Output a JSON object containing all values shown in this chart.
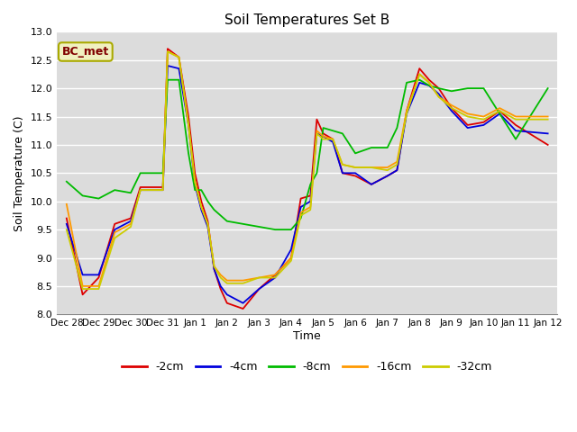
{
  "title": "Soil Temperatures Set B",
  "xlabel": "Time",
  "ylabel": "Soil Temperature (C)",
  "ylim": [
    8.0,
    13.0
  ],
  "plot_bg_color": "#dcdcdc",
  "fig_bg_color": "#ffffff",
  "label_box": "BC_met",
  "tick_labels": [
    "Dec 28",
    "Dec 29",
    "Dec 30",
    "Dec 31",
    "Jan 1",
    "Jan 2",
    "Jan 3",
    "Jan 4",
    "Jan 5",
    "Jan 6",
    "Jan 7",
    "Jan 8",
    "Jan 9",
    "Jan 10",
    "Jan 11",
    "Jan 12"
  ],
  "series": {
    "-2cm": {
      "color": "#dd0000",
      "x": [
        0,
        0.5,
        1.0,
        1.5,
        2.0,
        2.3,
        2.6,
        3.0,
        3.15,
        3.5,
        3.8,
        4.0,
        4.2,
        4.4,
        4.6,
        4.8,
        5.0,
        5.5,
        6.0,
        6.5,
        7.0,
        7.3,
        7.6,
        7.8,
        8.0,
        8.3,
        8.6,
        9.0,
        9.5,
        10.0,
        10.3,
        10.6,
        11.0,
        11.3,
        11.6,
        12.0,
        12.5,
        13.0,
        13.5,
        14.0,
        15.0
      ],
      "y": [
        9.7,
        8.35,
        8.65,
        9.6,
        9.7,
        10.25,
        10.25,
        10.25,
        12.7,
        12.55,
        11.5,
        10.5,
        10.0,
        9.65,
        8.8,
        8.45,
        8.2,
        8.1,
        8.45,
        8.7,
        9.0,
        10.05,
        10.1,
        11.45,
        11.2,
        11.1,
        10.5,
        10.45,
        10.3,
        10.45,
        10.55,
        11.6,
        12.35,
        12.15,
        12.0,
        11.65,
        11.35,
        11.4,
        11.6,
        11.35,
        11.0
      ]
    },
    "-4cm": {
      "color": "#0000dd",
      "x": [
        0,
        0.5,
        1.0,
        1.5,
        2.0,
        2.3,
        2.6,
        3.0,
        3.15,
        3.5,
        3.8,
        4.0,
        4.2,
        4.4,
        4.6,
        4.8,
        5.0,
        5.5,
        6.0,
        6.5,
        7.0,
        7.3,
        7.6,
        7.8,
        8.0,
        8.3,
        8.6,
        9.0,
        9.5,
        10.0,
        10.3,
        10.6,
        11.0,
        11.3,
        11.6,
        12.0,
        12.5,
        13.0,
        13.5,
        14.0,
        15.0
      ],
      "y": [
        9.6,
        8.7,
        8.7,
        9.5,
        9.65,
        10.2,
        10.2,
        10.2,
        12.4,
        12.35,
        11.35,
        10.3,
        9.85,
        9.55,
        8.8,
        8.5,
        8.35,
        8.2,
        8.45,
        8.65,
        9.15,
        9.9,
        10.0,
        11.2,
        11.15,
        11.05,
        10.5,
        10.5,
        10.3,
        10.45,
        10.55,
        11.55,
        12.1,
        12.05,
        11.9,
        11.6,
        11.3,
        11.35,
        11.55,
        11.25,
        11.2
      ]
    },
    "-8cm": {
      "color": "#00bb00",
      "x": [
        0,
        0.5,
        1.0,
        1.5,
        2.0,
        2.3,
        2.6,
        3.0,
        3.15,
        3.5,
        3.8,
        4.0,
        4.2,
        4.4,
        4.6,
        4.8,
        5.0,
        5.5,
        6.0,
        6.5,
        7.0,
        7.3,
        7.6,
        7.8,
        8.0,
        8.3,
        8.6,
        9.0,
        9.5,
        10.0,
        10.3,
        10.6,
        11.0,
        11.3,
        11.6,
        12.0,
        12.5,
        13.0,
        13.5,
        14.0,
        15.0
      ],
      "y": [
        10.35,
        10.1,
        10.05,
        10.2,
        10.15,
        10.5,
        10.5,
        10.5,
        12.15,
        12.15,
        10.85,
        10.2,
        10.2,
        10.0,
        9.85,
        9.75,
        9.65,
        9.6,
        9.55,
        9.5,
        9.5,
        9.7,
        10.3,
        10.5,
        11.3,
        11.25,
        11.2,
        10.85,
        10.95,
        10.95,
        11.3,
        12.1,
        12.15,
        12.05,
        12.0,
        11.95,
        12.0,
        12.0,
        11.55,
        11.1,
        12.0
      ]
    },
    "-16cm": {
      "color": "#ff9900",
      "x": [
        0,
        0.5,
        1.0,
        1.5,
        2.0,
        2.3,
        2.6,
        3.0,
        3.15,
        3.5,
        3.8,
        4.0,
        4.2,
        4.4,
        4.6,
        4.8,
        5.0,
        5.5,
        6.0,
        6.5,
        7.0,
        7.3,
        7.6,
        7.8,
        8.0,
        8.3,
        8.6,
        9.0,
        9.5,
        10.0,
        10.3,
        10.6,
        11.0,
        11.3,
        11.6,
        12.0,
        12.5,
        13.0,
        13.5,
        14.0,
        15.0
      ],
      "y": [
        9.95,
        8.5,
        8.5,
        9.45,
        9.6,
        10.2,
        10.2,
        10.2,
        12.65,
        12.55,
        11.35,
        10.35,
        9.9,
        9.6,
        8.85,
        8.7,
        8.6,
        8.6,
        8.65,
        8.7,
        9.0,
        9.8,
        9.9,
        11.25,
        11.15,
        11.1,
        10.65,
        10.6,
        10.6,
        10.6,
        10.7,
        11.6,
        12.25,
        12.1,
        11.85,
        11.7,
        11.55,
        11.5,
        11.65,
        11.5,
        11.5
      ]
    },
    "-32cm": {
      "color": "#cccc00",
      "x": [
        0,
        0.5,
        1.0,
        1.5,
        2.0,
        2.3,
        2.6,
        3.0,
        3.15,
        3.5,
        3.8,
        4.0,
        4.2,
        4.4,
        4.6,
        4.8,
        5.0,
        5.5,
        6.0,
        6.5,
        7.0,
        7.3,
        7.6,
        7.8,
        8.0,
        8.3,
        8.6,
        9.0,
        9.5,
        10.0,
        10.3,
        10.6,
        11.0,
        11.3,
        11.6,
        12.0,
        12.5,
        13.0,
        13.5,
        14.0,
        15.0
      ],
      "y": [
        9.5,
        8.45,
        8.45,
        9.35,
        9.55,
        10.2,
        10.2,
        10.2,
        12.65,
        12.55,
        11.35,
        10.35,
        9.9,
        9.6,
        8.85,
        8.65,
        8.55,
        8.55,
        8.65,
        8.65,
        8.95,
        9.75,
        9.85,
        11.2,
        11.1,
        11.1,
        10.65,
        10.6,
        10.6,
        10.55,
        10.65,
        11.55,
        12.25,
        12.1,
        11.85,
        11.65,
        11.5,
        11.45,
        11.6,
        11.45,
        11.45
      ]
    }
  },
  "legend_items": [
    "-2cm",
    "-4cm",
    "-8cm",
    "-16cm",
    "-32cm"
  ],
  "legend_colors": [
    "#dd0000",
    "#0000dd",
    "#00bb00",
    "#ff9900",
    "#cccc00"
  ]
}
